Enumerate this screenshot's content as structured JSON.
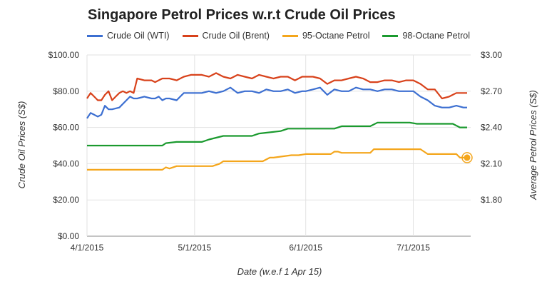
{
  "chart_data": {
    "type": "line",
    "title": "Singapore Petrol Prices w.r.t Crude Oil Prices",
    "xlabel": "Date (w.e.f 1 Apr 15)",
    "ylabel_left": "Crude Oil Prices (S$)",
    "ylabel_right": "Average Petrol Prices (S$)",
    "x_ticks": [
      "4/1/2015",
      "5/1/2015",
      "6/1/2015",
      "7/1/2015"
    ],
    "y_left_ticks": [
      "$0.00",
      "$20.00",
      "$40.00",
      "$60.00",
      "$80.00",
      "$100.00"
    ],
    "y_right_ticks": [
      "$1.80",
      "$2.10",
      "$2.40",
      "$2.70",
      "$3.00"
    ],
    "y_left_range": [
      0,
      100
    ],
    "y_right_range": [
      1.5,
      3.0
    ],
    "x_range": [
      "2015-04-01",
      "2015-07-17"
    ],
    "grid": true,
    "legend_position": "top",
    "series": [
      {
        "name": "Crude Oil (WTI)",
        "axis": "left",
        "color": "#3c6fd1",
        "x": [
          "2015-04-01",
          "2015-04-02",
          "2015-04-03",
          "2015-04-04",
          "2015-04-05",
          "2015-04-06",
          "2015-04-07",
          "2015-04-08",
          "2015-04-10",
          "2015-04-12",
          "2015-04-13",
          "2015-04-14",
          "2015-04-15",
          "2015-04-17",
          "2015-04-19",
          "2015-04-20",
          "2015-04-21",
          "2015-04-22",
          "2015-04-23",
          "2015-04-24",
          "2015-04-26",
          "2015-04-27",
          "2015-04-28",
          "2015-04-29",
          "2015-04-30",
          "2015-05-01",
          "2015-05-03",
          "2015-05-05",
          "2015-05-07",
          "2015-05-09",
          "2015-05-11",
          "2015-05-13",
          "2015-05-15",
          "2015-05-17",
          "2015-05-19",
          "2015-05-21",
          "2015-05-23",
          "2015-05-25",
          "2015-05-27",
          "2015-05-29",
          "2015-05-31",
          "2015-06-01",
          "2015-06-03",
          "2015-06-05",
          "2015-06-07",
          "2015-06-09",
          "2015-06-11",
          "2015-06-13",
          "2015-06-15",
          "2015-06-17",
          "2015-06-19",
          "2015-06-21",
          "2015-06-23",
          "2015-06-25",
          "2015-06-27",
          "2015-06-29",
          "2015-07-01",
          "2015-07-03",
          "2015-07-05",
          "2015-07-07",
          "2015-07-09",
          "2015-07-11",
          "2015-07-13",
          "2015-07-15",
          "2015-07-16"
        ],
        "values": [
          65,
          68,
          67,
          66,
          67,
          72,
          70,
          70,
          71,
          75,
          77,
          76,
          76,
          77,
          76,
          76,
          77,
          75,
          76,
          76,
          75,
          77,
          79,
          79,
          79,
          79,
          79,
          80,
          79,
          80,
          82,
          79,
          80,
          80,
          79,
          81,
          80,
          80,
          81,
          79,
          80,
          80,
          81,
          82,
          78,
          81,
          80,
          80,
          82,
          81,
          81,
          80,
          81,
          81,
          80,
          80,
          80,
          77,
          75,
          72,
          71,
          71,
          72,
          71,
          71
        ]
      },
      {
        "name": "Crude Oil (Brent)",
        "axis": "left",
        "color": "#d8421b",
        "x": [
          "2015-04-01",
          "2015-04-02",
          "2015-04-03",
          "2015-04-04",
          "2015-04-05",
          "2015-04-06",
          "2015-04-07",
          "2015-04-08",
          "2015-04-09",
          "2015-04-10",
          "2015-04-11",
          "2015-04-12",
          "2015-04-13",
          "2015-04-14",
          "2015-04-15",
          "2015-04-17",
          "2015-04-19",
          "2015-04-20",
          "2015-04-22",
          "2015-04-24",
          "2015-04-26",
          "2015-04-28",
          "2015-04-30",
          "2015-05-01",
          "2015-05-03",
          "2015-05-05",
          "2015-05-07",
          "2015-05-09",
          "2015-05-11",
          "2015-05-13",
          "2015-05-15",
          "2015-05-17",
          "2015-05-19",
          "2015-05-21",
          "2015-05-23",
          "2015-05-25",
          "2015-05-27",
          "2015-05-29",
          "2015-05-31",
          "2015-06-01",
          "2015-06-03",
          "2015-06-05",
          "2015-06-07",
          "2015-06-09",
          "2015-06-11",
          "2015-06-13",
          "2015-06-15",
          "2015-06-17",
          "2015-06-19",
          "2015-06-21",
          "2015-06-23",
          "2015-06-25",
          "2015-06-27",
          "2015-06-29",
          "2015-07-01",
          "2015-07-03",
          "2015-07-05",
          "2015-07-07",
          "2015-07-09",
          "2015-07-11",
          "2015-07-13",
          "2015-07-15",
          "2015-07-16"
        ],
        "values": [
          76,
          79,
          77,
          75,
          75,
          78,
          80,
          75,
          77,
          79,
          80,
          79,
          80,
          79,
          87,
          86,
          86,
          85,
          87,
          87,
          86,
          88,
          89,
          89,
          89,
          88,
          90,
          88,
          87,
          89,
          88,
          87,
          89,
          88,
          87,
          88,
          88,
          86,
          88,
          88,
          88,
          87,
          84,
          86,
          86,
          87,
          88,
          87,
          85,
          85,
          86,
          86,
          85,
          86,
          86,
          84,
          81,
          81,
          76,
          77,
          79,
          79,
          79
        ]
      },
      {
        "name": "95-Octane Petrol",
        "axis": "right",
        "color": "#f4a61c",
        "x": [
          "2015-04-01",
          "2015-04-22",
          "2015-04-23",
          "2015-04-24",
          "2015-04-26",
          "2015-05-06",
          "2015-05-08",
          "2015-05-09",
          "2015-05-13",
          "2015-05-20",
          "2015-05-22",
          "2015-05-23",
          "2015-05-28",
          "2015-05-30",
          "2015-06-01",
          "2015-06-08",
          "2015-06-09",
          "2015-06-10",
          "2015-06-11",
          "2015-06-19",
          "2015-06-20",
          "2015-07-03",
          "2015-07-05",
          "2015-07-13",
          "2015-07-14",
          "2015-07-16"
        ],
        "values": [
          2.05,
          2.05,
          2.07,
          2.06,
          2.08,
          2.08,
          2.1,
          2.12,
          2.12,
          2.12,
          2.15,
          2.15,
          2.17,
          2.17,
          2.18,
          2.18,
          2.2,
          2.2,
          2.19,
          2.19,
          2.22,
          2.22,
          2.18,
          2.18,
          2.15,
          2.15
        ],
        "highlighted_value": 2.15
      },
      {
        "name": "98-Octane Petrol",
        "axis": "right",
        "color": "#1b9a2f",
        "x": [
          "2015-04-01",
          "2015-04-22",
          "2015-04-23",
          "2015-04-26",
          "2015-05-03",
          "2015-05-05",
          "2015-05-09",
          "2015-05-17",
          "2015-05-19",
          "2015-05-25",
          "2015-05-27",
          "2015-06-01",
          "2015-06-09",
          "2015-06-11",
          "2015-06-19",
          "2015-06-21",
          "2015-06-30",
          "2015-07-02",
          "2015-07-12",
          "2015-07-14",
          "2015-07-16"
        ],
        "values": [
          2.25,
          2.25,
          2.27,
          2.28,
          2.28,
          2.3,
          2.33,
          2.33,
          2.35,
          2.37,
          2.39,
          2.39,
          2.39,
          2.41,
          2.41,
          2.44,
          2.44,
          2.43,
          2.43,
          2.4,
          2.4
        ]
      }
    ]
  }
}
